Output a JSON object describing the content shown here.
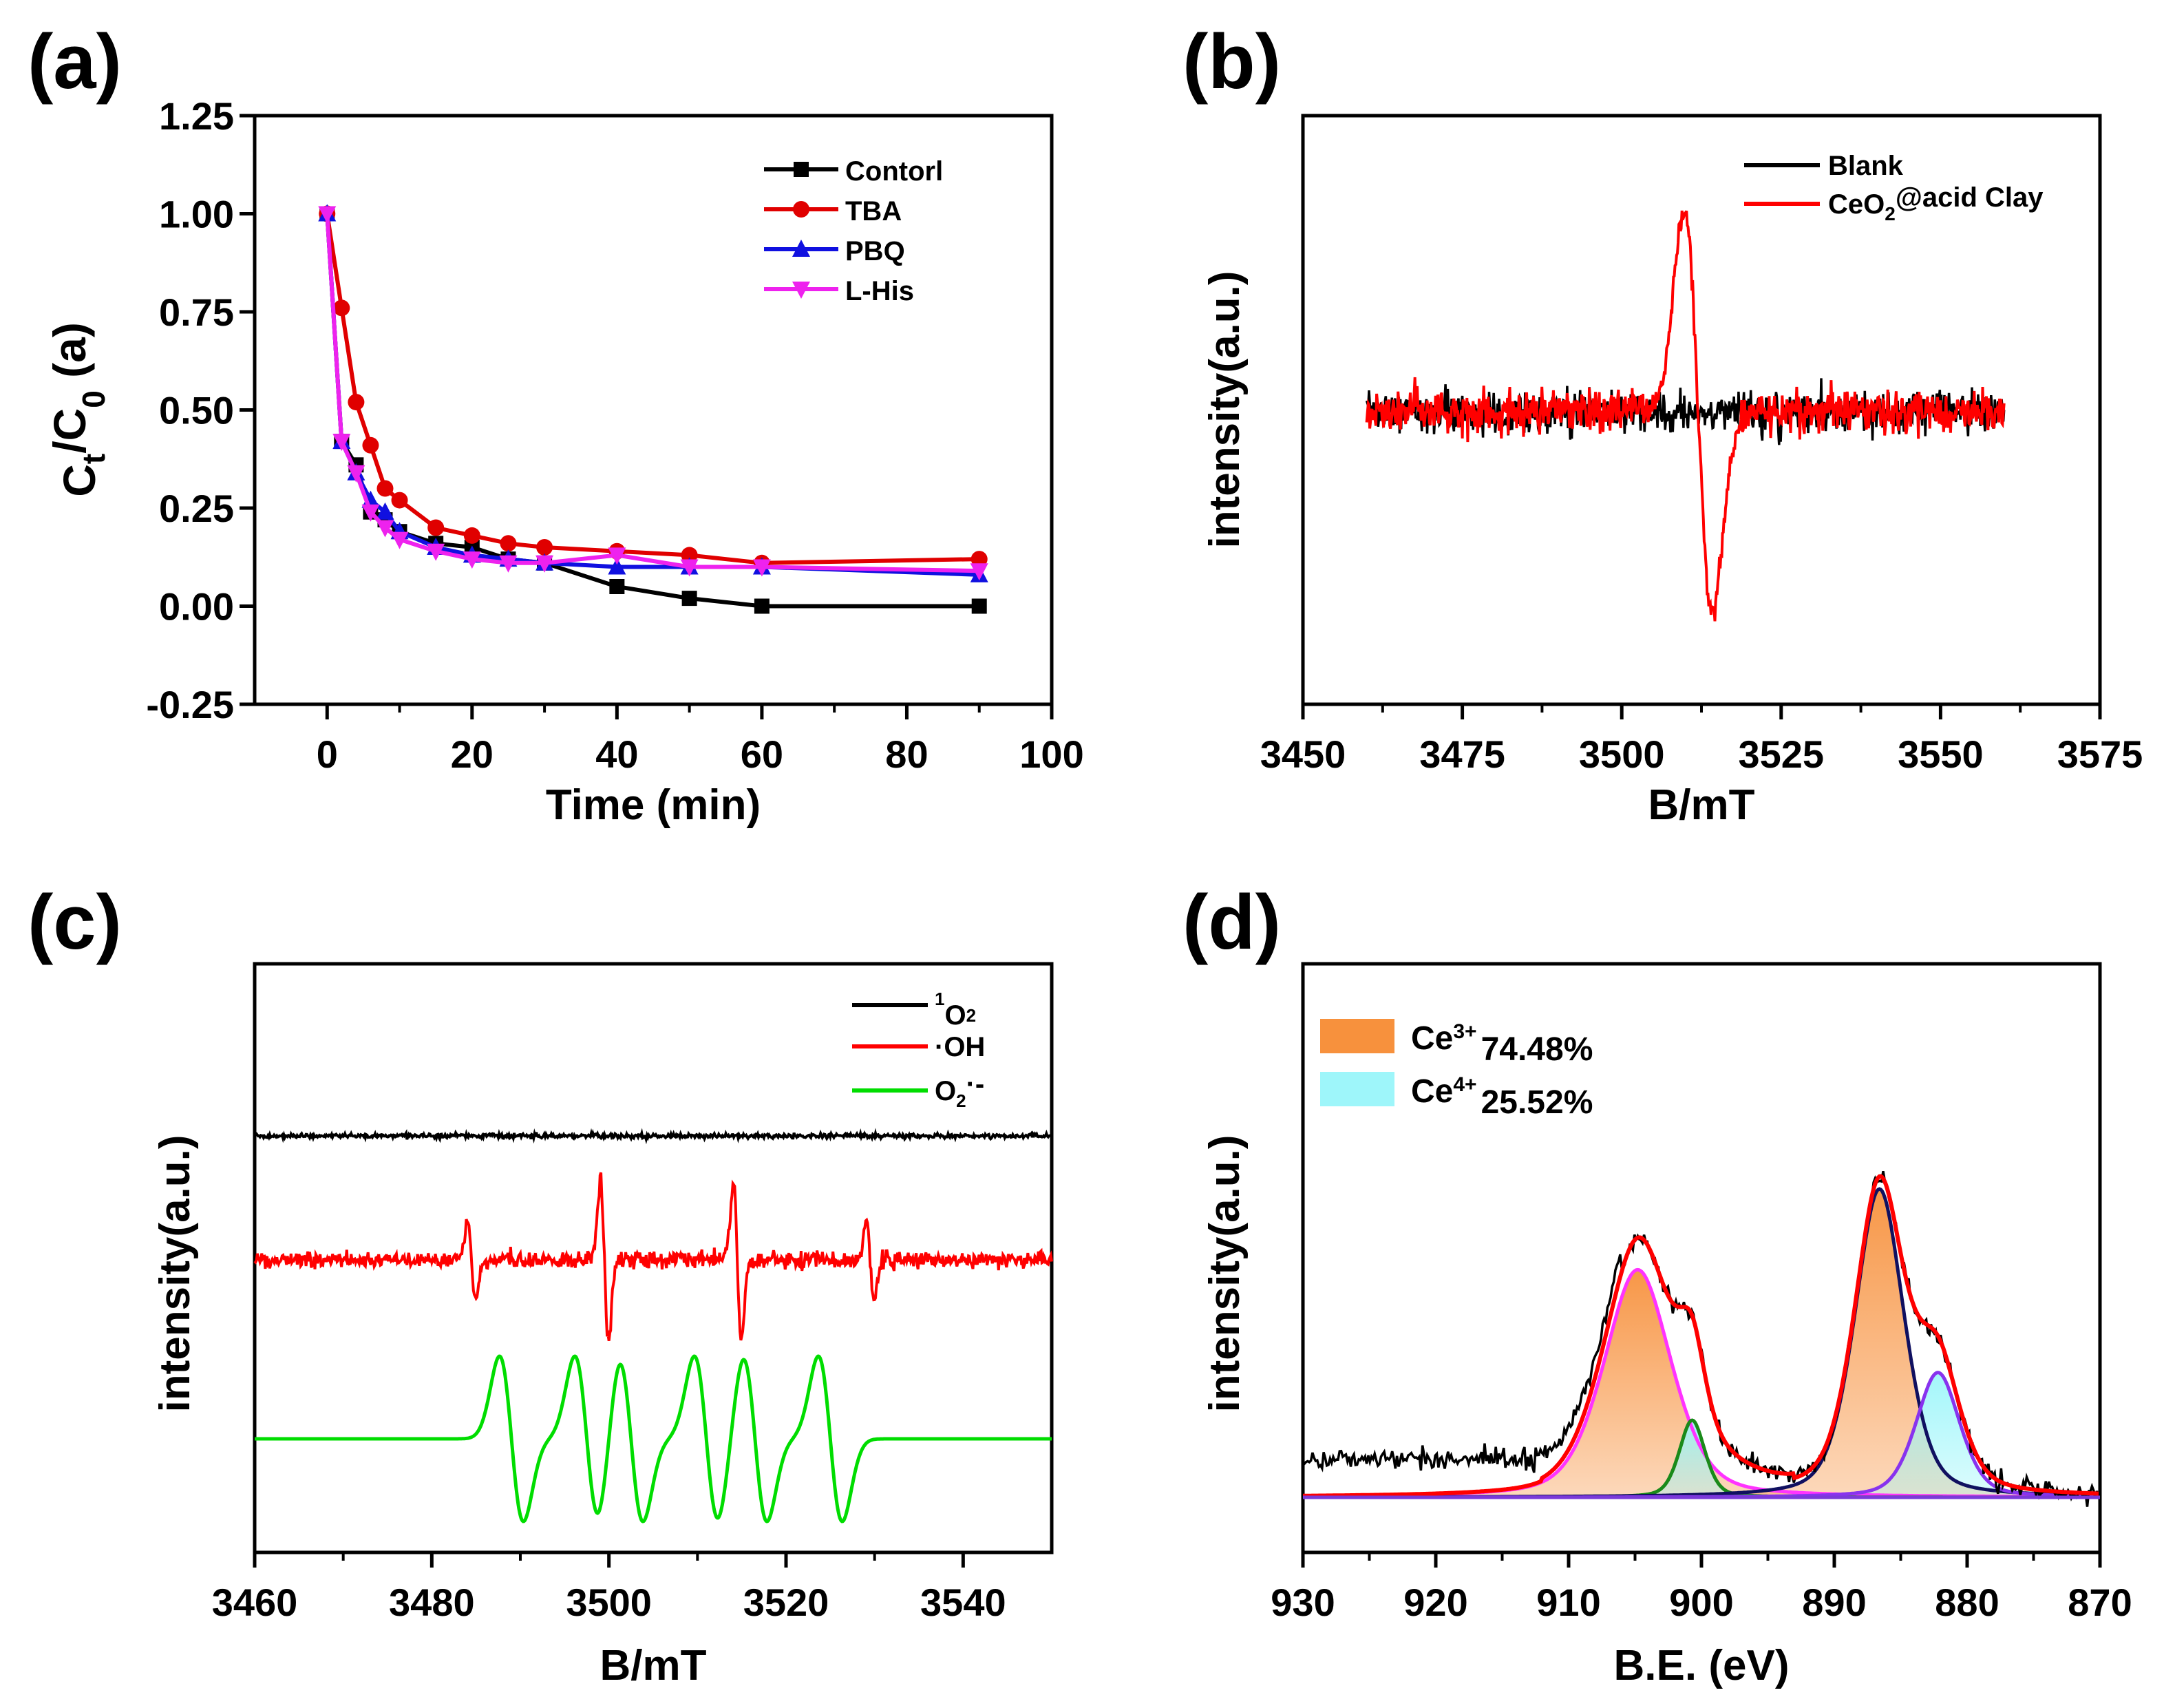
{
  "chart_data": [
    {
      "panel": "(a)",
      "type": "line",
      "xlabel": "Time (min)",
      "ylabel": "Ct/C0 (a)",
      "ylabel_parts": [
        "C",
        "t",
        "/C",
        "0",
        " (a)"
      ],
      "xlim": [
        -10,
        100
      ],
      "ylim": [
        -0.25,
        1.25
      ],
      "xticks": [
        "0",
        "20",
        "40",
        "60",
        "80",
        "100"
      ],
      "yticks": [
        "-0.25",
        "0.00",
        "0.25",
        "0.50",
        "0.75",
        "1.00",
        "1.25"
      ],
      "legend_position": "top-right",
      "series": [
        {
          "name": "Contorl",
          "color": "#000000",
          "marker": "square",
          "x": [
            0,
            2,
            4,
            6,
            8,
            10,
            15,
            20,
            25,
            30,
            40,
            50,
            60,
            90
          ],
          "y": [
            1.0,
            0.42,
            0.36,
            0.24,
            0.22,
            0.19,
            0.16,
            0.15,
            0.12,
            0.11,
            0.05,
            0.02,
            0.0,
            0.0
          ]
        },
        {
          "name": "TBA",
          "color": "#e00000",
          "marker": "circle",
          "x": [
            0,
            2,
            4,
            6,
            8,
            10,
            15,
            20,
            25,
            30,
            40,
            50,
            60,
            90
          ],
          "y": [
            1.0,
            0.76,
            0.52,
            0.41,
            0.3,
            0.27,
            0.2,
            0.18,
            0.16,
            0.15,
            0.14,
            0.13,
            0.11,
            0.12
          ]
        },
        {
          "name": "PBQ",
          "color": "#1010e0",
          "marker": "triangle-up",
          "x": [
            0,
            2,
            4,
            6,
            8,
            10,
            15,
            20,
            25,
            30,
            40,
            50,
            60,
            90
          ],
          "y": [
            1.0,
            0.42,
            0.34,
            0.27,
            0.24,
            0.19,
            0.15,
            0.13,
            0.12,
            0.11,
            0.1,
            0.1,
            0.1,
            0.08
          ]
        },
        {
          "name": "L-His",
          "color": "#ee22ee",
          "marker": "triangle-down",
          "x": [
            0,
            2,
            4,
            6,
            8,
            10,
            15,
            20,
            25,
            30,
            40,
            50,
            60,
            90
          ],
          "y": [
            1.0,
            0.42,
            0.34,
            0.24,
            0.2,
            0.17,
            0.14,
            0.12,
            0.11,
            0.11,
            0.13,
            0.1,
            0.1,
            0.09
          ]
        }
      ]
    },
    {
      "panel": "(b)",
      "type": "line",
      "xlabel": "B/mT",
      "ylabel": "intensity(a.u.)",
      "xlim": [
        3450,
        3575
      ],
      "xticks": [
        "3450",
        "3475",
        "3500",
        "3525",
        "3550",
        "3575"
      ],
      "legend_position": "top-right",
      "series": [
        {
          "name": "Blank",
          "color": "#000000",
          "x_range": [
            3460,
            3560
          ],
          "signal": "noise baseline"
        },
        {
          "name": "CeO2@acid Clay",
          "legend_parts": [
            "CeO",
            "2",
            "@acid Clay"
          ],
          "color": "#ff0000",
          "x_range": [
            3460,
            3560
          ],
          "signal": "derivative peak, max near 3510, min near 3514"
        }
      ]
    },
    {
      "panel": "(c)",
      "type": "line",
      "xlabel": "B/mT",
      "ylabel": "intensity(a.u.)",
      "xlim": [
        3460,
        3550
      ],
      "xticks": [
        "3460",
        "3480",
        "3500",
        "3520",
        "3540"
      ],
      "legend_position": "top-right",
      "series": [
        {
          "name": "1O2",
          "legend_parts": [
            "1",
            "O",
            "2"
          ],
          "color": "#000000",
          "signal": "flat"
        },
        {
          "name": "·OH",
          "color": "#ff0000",
          "peaks_x": [
            3484.5,
            3499.5,
            3514.5,
            3529.5
          ],
          "peak_ratio": [
            1,
            2,
            2,
            1
          ]
        },
        {
          "name": "O2·-",
          "legend_parts": [
            "O",
            "2",
            "·-"
          ],
          "color": "#00dd00",
          "peaks_x": [
            3489,
            3497.5,
            3502.5,
            3511,
            3516.5,
            3525
          ]
        }
      ]
    },
    {
      "panel": "(d)",
      "type": "line",
      "xlabel": "B.E. (eV)",
      "ylabel": "intensity(a.u.)",
      "xlim": [
        930,
        870
      ],
      "xticks": [
        "930",
        "920",
        "910",
        "900",
        "890",
        "880",
        "870"
      ],
      "legend_position": "top-left",
      "legend": [
        {
          "label": "Ce3+ 74.48%",
          "ion": "Ce",
          "charge": "3+",
          "percent": "74.48%",
          "color": "#f7913d"
        },
        {
          "label": "Ce4+ 25.52%",
          "ion": "Ce",
          "charge": "4+",
          "percent": "25.52%",
          "color": "#9ef6fa"
        }
      ],
      "components": [
        {
          "center": 904.8,
          "amplitude": 0.62,
          "width": 2.6,
          "state": "Ce3+",
          "line_color": "#ff33ff"
        },
        {
          "center": 900.7,
          "amplitude": 0.21,
          "width": 1.0,
          "state": "Ce4+",
          "line_color": "#1a8a1a"
        },
        {
          "center": 886.6,
          "amplitude": 0.84,
          "width": 1.9,
          "state": "Ce3+",
          "line_color": "#101060"
        },
        {
          "center": 882.2,
          "amplitude": 0.34,
          "width": 1.7,
          "state": "Ce4+",
          "line_color": "#8833ee"
        }
      ],
      "envelope_color": "#ff0000",
      "raw_color": "#000000",
      "baseline_color": "#7a3ad8"
    }
  ]
}
